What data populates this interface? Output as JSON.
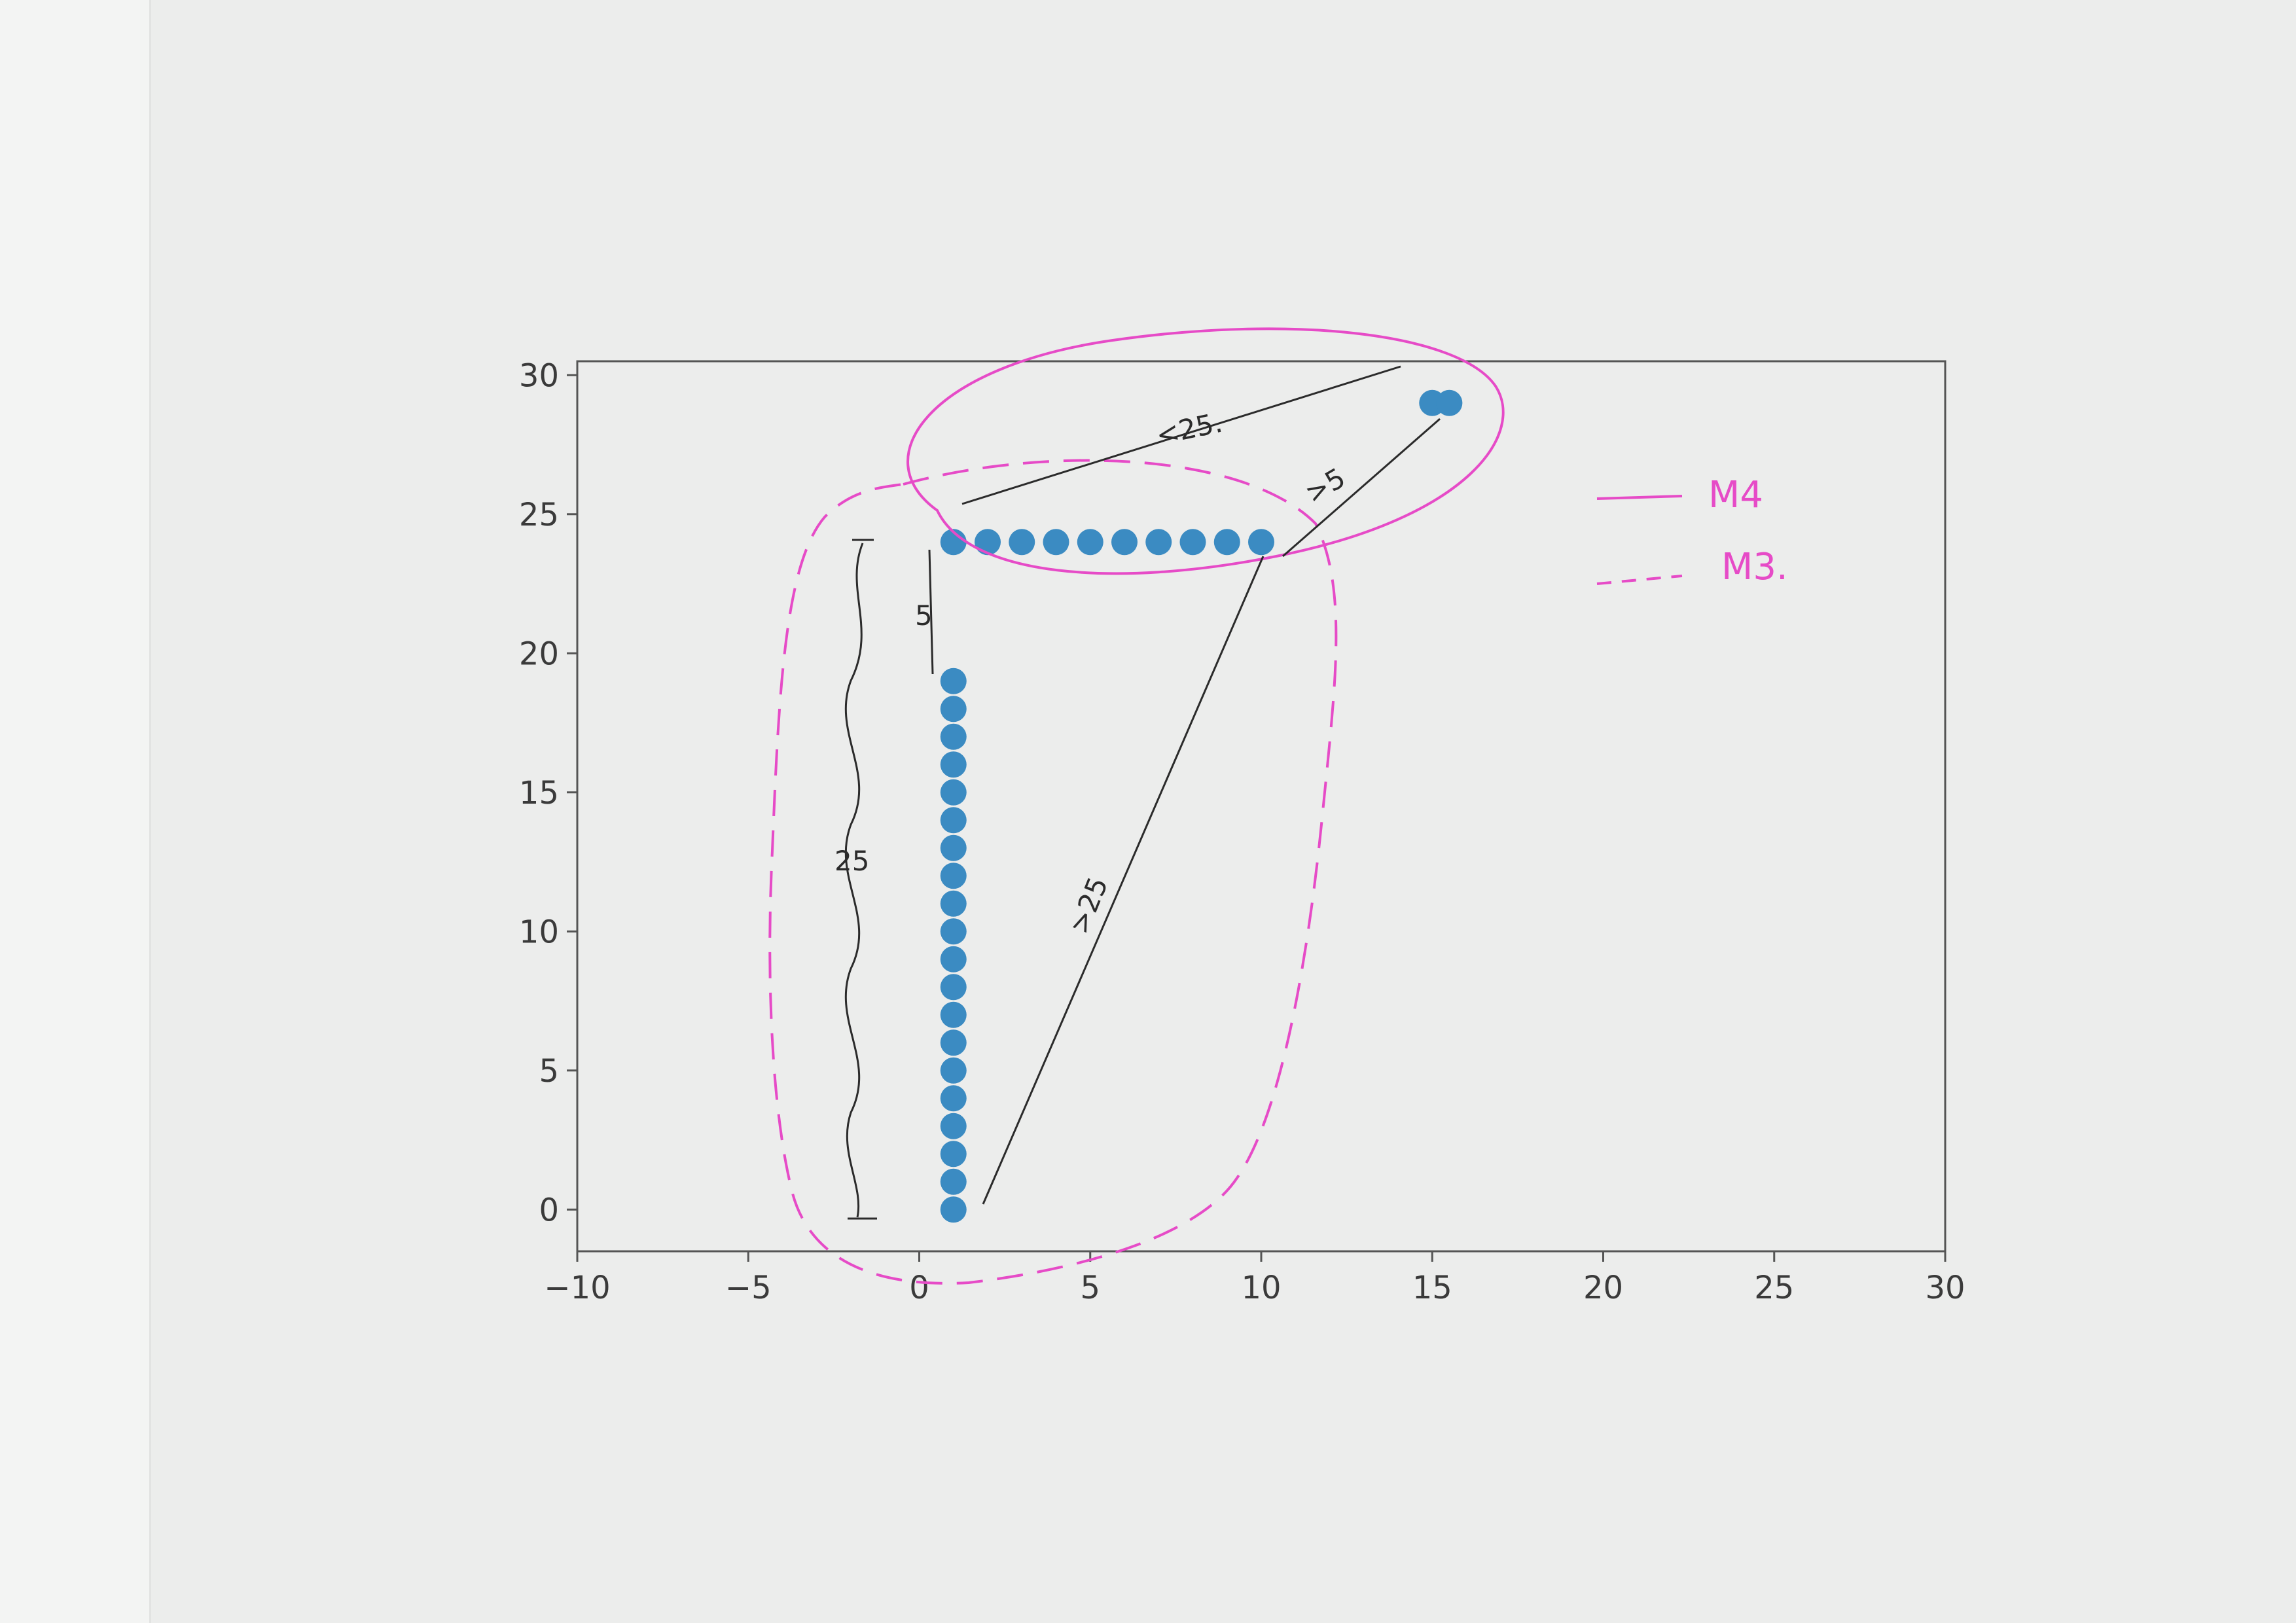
{
  "chart_data": {
    "type": "scatter",
    "title": "",
    "xlabel": "",
    "ylabel": "",
    "xlim": [
      -10,
      30
    ],
    "ylim": [
      -1.5,
      30.5
    ],
    "xticks": [
      -10,
      -5,
      0,
      5,
      10,
      15,
      20,
      25,
      30
    ],
    "yticks": [
      0,
      5,
      10,
      15,
      20,
      25,
      30
    ],
    "xtick_labels": [
      "−10",
      "−5",
      "0",
      "5",
      "10",
      "15",
      "20",
      "25",
      "30"
    ],
    "ytick_labels": [
      "0",
      "5",
      "10",
      "15",
      "20",
      "25",
      "30"
    ],
    "grid": false,
    "series": [
      {
        "color": "#3b8bc2",
        "points": [
          [
            1,
            0
          ],
          [
            1,
            1
          ],
          [
            1,
            2
          ],
          [
            1,
            3
          ],
          [
            1,
            4
          ],
          [
            1,
            5
          ],
          [
            1,
            6
          ],
          [
            1,
            7
          ],
          [
            1,
            8
          ],
          [
            1,
            9
          ],
          [
            1,
            10
          ],
          [
            1,
            11
          ],
          [
            1,
            12
          ],
          [
            1,
            13
          ],
          [
            1,
            14
          ],
          [
            1,
            15
          ],
          [
            1,
            16
          ],
          [
            1,
            17
          ],
          [
            1,
            18
          ],
          [
            1,
            19
          ],
          [
            1,
            24
          ],
          [
            2,
            24
          ],
          [
            3,
            24
          ],
          [
            4,
            24
          ],
          [
            5,
            24
          ],
          [
            6,
            24
          ],
          [
            7,
            24
          ],
          [
            8,
            24
          ],
          [
            9,
            24
          ],
          [
            10,
            24
          ],
          [
            15,
            29
          ],
          [
            15.5,
            29
          ]
        ]
      }
    ],
    "annotations": {
      "accent_color": "#e64bc7",
      "ink_color": "#2b2b2b",
      "legend": [
        {
          "label": "M4",
          "style": "solid"
        },
        {
          "label": "M3.",
          "style": "dashed"
        }
      ],
      "distance_labels": [
        "<25.",
        ">5",
        "5",
        ">25",
        "25"
      ]
    }
  }
}
